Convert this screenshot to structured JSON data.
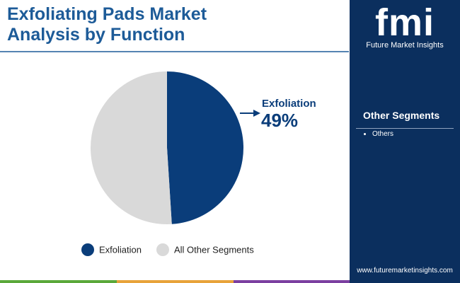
{
  "chart_data": {
    "type": "pie",
    "title": "Exfoliating Pads Market Analysis by Function",
    "categories": [
      "Exfoliation",
      "All Other Segments"
    ],
    "values": [
      49,
      51
    ],
    "value_labels": [
      "49%",
      null
    ],
    "colors": [
      "#0a3d7a",
      "#d9d9d9"
    ]
  },
  "logo": "fmi",
  "sidebar": {
    "brand": "Future Market Insights",
    "heading": "Other Segments",
    "items": [
      "Others"
    ],
    "website": "www.futuremarketinsights.com"
  }
}
